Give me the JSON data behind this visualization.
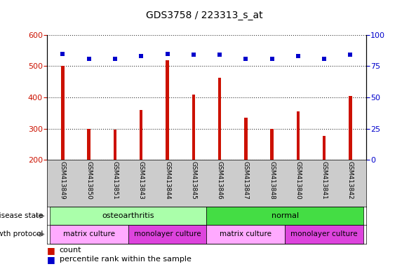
{
  "title": "GDS3758 / 223313_s_at",
  "samples": [
    "GSM413849",
    "GSM413850",
    "GSM413851",
    "GSM413843",
    "GSM413844",
    "GSM413845",
    "GSM413846",
    "GSM413847",
    "GSM413848",
    "GSM413840",
    "GSM413841",
    "GSM413842"
  ],
  "counts": [
    502,
    298,
    297,
    360,
    518,
    410,
    462,
    335,
    298,
    355,
    277,
    405
  ],
  "percentile_ranks": [
    85,
    81,
    81,
    83,
    85,
    84,
    84,
    81,
    81,
    83,
    81,
    84
  ],
  "ylim_left": [
    200,
    600
  ],
  "ylim_right": [
    0,
    100
  ],
  "yticks_left": [
    200,
    300,
    400,
    500,
    600
  ],
  "yticks_right": [
    0,
    25,
    50,
    75,
    100
  ],
  "bar_color": "#cc1100",
  "dot_color": "#0000cc",
  "disease_state_groups": [
    {
      "label": "osteoarthritis",
      "start": 0,
      "end": 5,
      "color": "#aaffaa"
    },
    {
      "label": "normal",
      "start": 6,
      "end": 11,
      "color": "#44dd44"
    }
  ],
  "growth_protocol_groups": [
    {
      "label": "matrix culture",
      "start": 0,
      "end": 2,
      "color": "#ffaaff"
    },
    {
      "label": "monolayer culture",
      "start": 3,
      "end": 5,
      "color": "#dd44dd"
    },
    {
      "label": "matrix culture",
      "start": 6,
      "end": 8,
      "color": "#ffaaff"
    },
    {
      "label": "monolayer culture",
      "start": 9,
      "end": 11,
      "color": "#dd44dd"
    }
  ],
  "annotation_disease_state": "disease state",
  "annotation_growth_protocol": "growth protocol",
  "legend_count_label": "count",
  "legend_percentile_label": "percentile rank within the sample",
  "background_color": "#ffffff",
  "tick_area_color": "#cccccc",
  "bar_width": 0.12
}
